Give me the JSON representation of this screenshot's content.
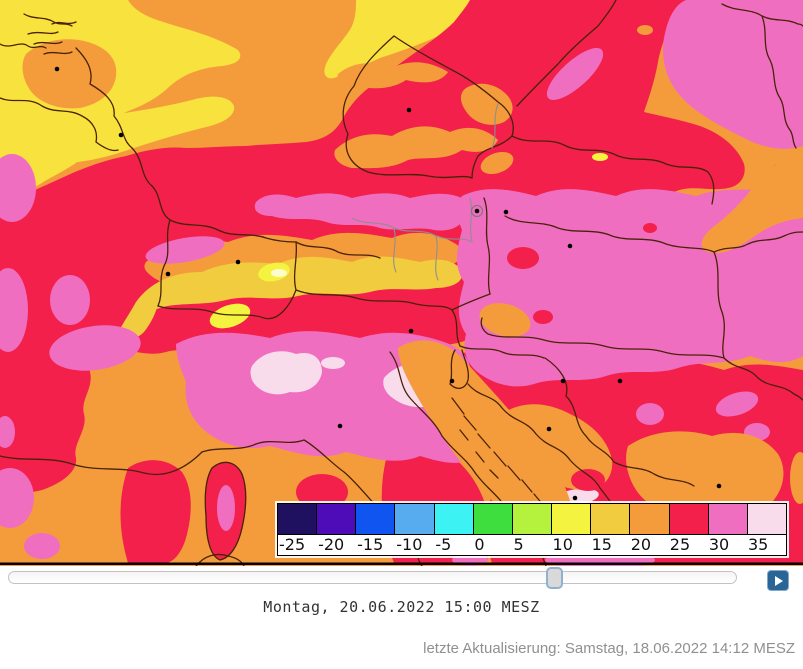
{
  "map": {
    "palette": {
      "10": "#F4F440",
      "15": "#F2CC3F",
      "20": "#F49C3C",
      "25": "#F2204A",
      "30": "#F06EC0",
      "35": "#F9DCEB",
      "pale": "#FCFCCE",
      "y_light": "#F8E23E"
    },
    "border_color": "#4A2208",
    "regional_border_color": "#8F8F8F",
    "city_dot_color": "#000000"
  },
  "legend": {
    "entries": [
      {
        "label": "-25",
        "color": "#201060"
      },
      {
        "label": "-20",
        "color": "#4E0CB8"
      },
      {
        "label": "-15",
        "color": "#1155F0"
      },
      {
        "label": "-10",
        "color": "#57ACF0"
      },
      {
        "label": "-5",
        "color": "#3DF2F2"
      },
      {
        "label": "0",
        "color": "#3FDE3F"
      },
      {
        "label": "5",
        "color": "#B5F23D"
      },
      {
        "label": "10",
        "color": "#F4F440"
      },
      {
        "label": "15",
        "color": "#F2CC3F"
      },
      {
        "label": "20",
        "color": "#F49C3C"
      },
      {
        "label": "25",
        "color": "#F2204A"
      },
      {
        "label": "30",
        "color": "#F06EC0"
      },
      {
        "label": "35",
        "color": "#F9DCEB"
      }
    ]
  },
  "controls": {
    "slider": {
      "value_percent": 75.5
    },
    "play_button": {
      "color": "#2a6598"
    }
  },
  "caption": {
    "text": "Montag, 20.06.2022 15:00 MESZ"
  },
  "status": {
    "text": "letzte Aktualisierung: Samstag, 18.06.2022 14:12 MESZ"
  }
}
